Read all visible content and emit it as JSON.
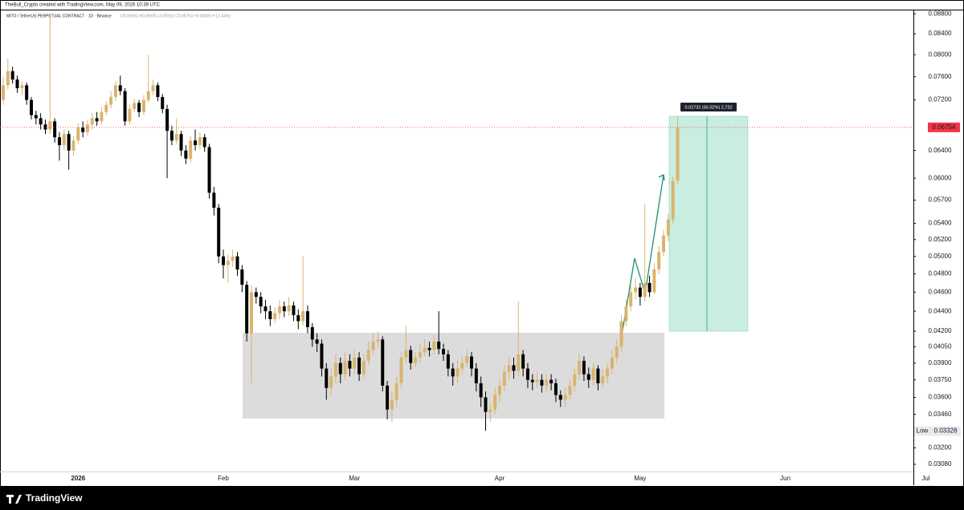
{
  "header": {
    "credit": "TheBull_Crypto created with TradingView.com, May 09, 2026 10:39 UTC"
  },
  "footer": {
    "brand": "TradingView"
  },
  "chart_data": {
    "type": "candlestick",
    "symbol": "MITO / TetherUS PERPETUAL CONTRACT · 1D · Binance",
    "ohlc_legend": "O0.05962 H0.06935 L0.05911 C0.06754 +0.00800 (+13.44%)",
    "measure_label": "0.02732 (65.02%) 2,732",
    "last_price": {
      "value": 0.06754,
      "label": "0.06754"
    },
    "low_marker": {
      "text": "Low",
      "value": 0.03328,
      "label": "0.03328"
    },
    "y_scale": "log",
    "grid": false,
    "up_color": "#d9b46c",
    "down_color": "#000000",
    "last_price_color": "#f23645",
    "ylim": [
      0.02934,
      0.0887
    ],
    "yticks": [
      {
        "value": 0.0308,
        "label": "0.03080"
      },
      {
        "value": 0.032,
        "label": "0.03200"
      },
      {
        "value": 0.0346,
        "label": "0.03460"
      },
      {
        "value": 0.036,
        "label": "0.03600"
      },
      {
        "value": 0.0375,
        "label": "0.03750"
      },
      {
        "value": 0.039,
        "label": "0.03900"
      },
      {
        "value": 0.0405,
        "label": "0.04050"
      },
      {
        "value": 0.042,
        "label": "0.04200"
      },
      {
        "value": 0.044,
        "label": "0.04400"
      },
      {
        "value": 0.046,
        "label": "0.04600"
      },
      {
        "value": 0.048,
        "label": "0.04800"
      },
      {
        "value": 0.05,
        "label": "0.05000"
      },
      {
        "value": 0.052,
        "label": "0.05200"
      },
      {
        "value": 0.054,
        "label": "0.05400"
      },
      {
        "value": 0.057,
        "label": "0.05700"
      },
      {
        "value": 0.06,
        "label": "0.06000"
      },
      {
        "value": 0.064,
        "label": "0.06400"
      },
      {
        "value": 0.072,
        "label": "0.07200"
      },
      {
        "value": 0.076,
        "label": "0.07600"
      },
      {
        "value": 0.08,
        "label": "0.08000"
      },
      {
        "value": 0.084,
        "label": "0.08400"
      },
      {
        "value": 0.088,
        "label": "0.08800"
      }
    ],
    "categories": [
      null,
      null,
      null,
      null,
      null,
      null,
      null,
      null,
      null,
      null,
      null,
      null,
      null,
      null,
      null,
      null,
      "2026",
      null,
      null,
      null,
      null,
      null,
      null,
      null,
      null,
      null,
      null,
      null,
      null,
      null,
      null,
      null,
      null,
      null,
      null,
      null,
      null,
      null,
      null,
      null,
      null,
      null,
      null,
      null,
      null,
      null,
      null,
      "Feb",
      null,
      null,
      null,
      null,
      null,
      null,
      null,
      null,
      null,
      null,
      null,
      null,
      null,
      null,
      null,
      null,
      null,
      null,
      null,
      null,
      null,
      null,
      null,
      null,
      null,
      null,
      null,
      "Mar",
      null,
      null,
      null,
      null,
      null,
      null,
      null,
      null,
      null,
      null,
      null,
      null,
      null,
      null,
      null,
      null,
      null,
      null,
      null,
      null,
      null,
      null,
      null,
      null,
      null,
      null,
      null,
      null,
      null,
      null,
      "Apr",
      null,
      null,
      null,
      null,
      null,
      null,
      null,
      null,
      null,
      null,
      null,
      null,
      null,
      null,
      null,
      null,
      null,
      null,
      null,
      null,
      null,
      null,
      null,
      null,
      null,
      null,
      null,
      null,
      null,
      "May",
      null,
      null,
      null,
      null,
      null,
      null,
      null,
      null,
      null,
      null,
      null,
      null,
      null,
      null,
      null,
      null,
      null,
      null,
      null,
      null,
      null,
      null,
      null,
      null,
      null,
      null,
      null,
      null,
      null,
      null,
      "Jun",
      null,
      null,
      null,
      null,
      null,
      null,
      null,
      null,
      null,
      null,
      null,
      null,
      null,
      null,
      null,
      null,
      null,
      null,
      null,
      null,
      null,
      null,
      null,
      null,
      null,
      null,
      null,
      null,
      null,
      "Jul"
    ],
    "open": [
      0.072,
      0.0745,
      0.077,
      0.0755,
      0.074,
      0.0745,
      0.072,
      0.0695,
      0.069,
      0.068,
      0.0672,
      0.0685,
      0.066,
      0.0648,
      0.0665,
      0.064,
      0.0655,
      0.0675,
      0.0668,
      0.068,
      0.069,
      0.0685,
      0.07,
      0.0712,
      0.0725,
      0.0745,
      0.0735,
      0.0685,
      0.0705,
      0.0715,
      0.07,
      0.072,
      0.0735,
      0.0745,
      0.0725,
      0.0705,
      0.067,
      0.0655,
      0.0665,
      0.064,
      0.0628,
      0.0655,
      0.0648,
      0.066,
      0.0645,
      0.058,
      0.056,
      0.05,
      0.049,
      0.0495,
      0.05,
      0.0485,
      0.0468,
      0.0418,
      0.046,
      0.0455,
      0.0445,
      0.044,
      0.0432,
      0.0438,
      0.0445,
      0.044,
      0.0446,
      0.0436,
      0.043,
      0.044,
      0.0424,
      0.0412,
      0.0408,
      0.0385,
      0.0368,
      0.0378,
      0.039,
      0.038,
      0.0392,
      0.0385,
      0.0395,
      0.038,
      0.0392,
      0.0402,
      0.041,
      0.0412,
      0.037,
      0.035,
      0.0358,
      0.0372,
      0.0395,
      0.0402,
      0.039,
      0.0395,
      0.04,
      0.0404,
      0.0402,
      0.041,
      0.0403,
      0.0398,
      0.0385,
      0.0378,
      0.0385,
      0.039,
      0.0396,
      0.0385,
      0.0372,
      0.036,
      0.0348,
      0.035,
      0.0362,
      0.037,
      0.0382,
      0.0388,
      0.0383,
      0.0398,
      0.0385,
      0.0375,
      0.0373,
      0.0375,
      0.037,
      0.0375,
      0.0372,
      0.0362,
      0.0358,
      0.0362,
      0.037,
      0.038,
      0.0392,
      0.038,
      0.0375,
      0.0385,
      0.0372,
      0.0378,
      0.0385,
      0.0395,
      0.0405,
      0.043,
      0.0445,
      0.046,
      0.0465,
      0.0455,
      0.047,
      0.046,
      0.0485,
      0.0505,
      0.0525,
      0.0545,
      0.05962,
      null,
      null,
      null,
      null,
      null,
      null,
      null,
      null,
      null,
      null,
      null,
      null,
      null,
      null,
      null,
      null,
      null,
      null,
      null,
      null,
      null,
      null,
      null,
      null,
      null,
      null,
      null,
      null,
      null,
      null,
      null,
      null,
      null,
      null,
      null,
      null,
      null,
      null,
      null,
      null,
      null,
      null,
      null,
      null,
      null,
      null,
      null,
      null,
      null,
      null,
      null,
      null,
      null
    ],
    "close": [
      0.0745,
      0.077,
      0.0755,
      0.074,
      0.0745,
      0.072,
      0.0695,
      0.069,
      0.068,
      0.0672,
      0.0685,
      0.066,
      0.0648,
      0.0665,
      0.064,
      0.0655,
      0.0675,
      0.0668,
      0.068,
      0.069,
      0.0685,
      0.07,
      0.0712,
      0.0725,
      0.0745,
      0.0735,
      0.0685,
      0.0705,
      0.0715,
      0.07,
      0.072,
      0.0735,
      0.0745,
      0.0725,
      0.0705,
      0.067,
      0.0655,
      0.0665,
      0.064,
      0.0628,
      0.0655,
      0.0648,
      0.066,
      0.0645,
      0.058,
      0.056,
      0.05,
      0.049,
      0.0495,
      0.05,
      0.0485,
      0.0468,
      0.0418,
      0.046,
      0.0455,
      0.0445,
      0.044,
      0.0432,
      0.0438,
      0.0445,
      0.044,
      0.0446,
      0.0436,
      0.043,
      0.044,
      0.0424,
      0.0412,
      0.0408,
      0.0385,
      0.0368,
      0.0378,
      0.039,
      0.038,
      0.0392,
      0.0385,
      0.0395,
      0.038,
      0.0392,
      0.0402,
      0.041,
      0.0412,
      0.037,
      0.035,
      0.0358,
      0.0372,
      0.0395,
      0.0402,
      0.039,
      0.0395,
      0.04,
      0.0404,
      0.0402,
      0.041,
      0.0403,
      0.0398,
      0.0385,
      0.0378,
      0.0385,
      0.039,
      0.0396,
      0.0385,
      0.0372,
      0.036,
      0.0348,
      0.035,
      0.0362,
      0.037,
      0.0382,
      0.0388,
      0.0383,
      0.0398,
      0.0385,
      0.0375,
      0.0373,
      0.0375,
      0.037,
      0.0375,
      0.0372,
      0.0362,
      0.0358,
      0.0362,
      0.037,
      0.038,
      0.0392,
      0.038,
      0.0375,
      0.0385,
      0.0372,
      0.0378,
      0.0385,
      0.0395,
      0.0405,
      0.043,
      0.0445,
      0.046,
      0.0465,
      0.0455,
      0.047,
      0.046,
      0.0485,
      0.0505,
      0.0525,
      0.0545,
      0.0596,
      0.06754,
      null,
      null,
      null,
      null,
      null,
      null,
      null,
      null,
      null,
      null,
      null,
      null,
      null,
      null,
      null,
      null,
      null,
      null,
      null,
      null,
      null,
      null,
      null,
      null,
      null,
      null,
      null,
      null,
      null,
      null,
      null,
      null,
      null,
      null,
      null,
      null,
      null,
      null,
      null,
      null,
      null,
      null,
      null,
      null,
      null,
      null,
      null,
      null,
      null,
      null,
      null,
      null,
      null
    ],
    "high": [
      0.076,
      0.0793,
      0.0778,
      0.0762,
      0.0752,
      0.075,
      0.0725,
      0.0702,
      0.0698,
      0.0688,
      0.088,
      0.069,
      0.0668,
      0.0672,
      0.067,
      0.0662,
      0.0682,
      0.0685,
      0.0688,
      0.0698,
      0.07,
      0.0708,
      0.0718,
      0.0735,
      0.0752,
      0.0762,
      0.074,
      0.0712,
      0.0722,
      0.072,
      0.0728,
      0.08,
      0.0755,
      0.075,
      0.073,
      0.0712,
      0.0678,
      0.069,
      0.067,
      0.0648,
      0.0662,
      0.0672,
      0.0668,
      0.0665,
      0.065,
      0.0588,
      0.0565,
      0.0508,
      0.0502,
      0.0508,
      0.0505,
      0.049,
      0.0472,
      0.0468,
      0.0465,
      0.046,
      0.0452,
      0.0446,
      0.0444,
      0.0452,
      0.045,
      0.0455,
      0.045,
      0.0442,
      0.05,
      0.0446,
      0.0428,
      0.0418,
      0.0412,
      0.039,
      0.0385,
      0.0398,
      0.0395,
      0.04,
      0.0398,
      0.0402,
      0.04,
      0.0398,
      0.041,
      0.0418,
      0.042,
      0.0415,
      0.0374,
      0.0365,
      0.0378,
      0.04,
      0.0425,
      0.0406,
      0.04,
      0.0408,
      0.0412,
      0.041,
      0.0416,
      0.044,
      0.0408,
      0.0402,
      0.039,
      0.0392,
      0.0396,
      0.0402,
      0.04,
      0.039,
      0.0378,
      0.0365,
      0.0356,
      0.0368,
      0.0376,
      0.0388,
      0.0395,
      0.0395,
      0.045,
      0.0402,
      0.039,
      0.038,
      0.0382,
      0.038,
      0.038,
      0.038,
      0.0376,
      0.0366,
      0.0368,
      0.0376,
      0.0386,
      0.0398,
      0.0396,
      0.0386,
      0.039,
      0.0388,
      0.0384,
      0.039,
      0.0402,
      0.0412,
      0.0436,
      0.0452,
      0.0468,
      0.0475,
      0.047,
      0.0565,
      0.0478,
      0.0492,
      0.0512,
      0.0532,
      0.0552,
      0.0602,
      0.06935,
      null,
      null,
      null,
      null,
      null,
      null,
      null,
      null,
      null,
      null,
      null,
      null,
      null,
      null,
      null,
      null,
      null,
      null,
      null,
      null,
      null,
      null,
      null,
      null,
      null,
      null,
      null,
      null,
      null,
      null,
      null,
      null,
      null,
      null,
      null,
      null,
      null,
      null,
      null,
      null,
      null,
      null,
      null,
      null,
      null,
      null,
      null,
      null,
      null,
      null,
      null,
      null,
      null
    ],
    "low": [
      0.0712,
      0.0738,
      0.0748,
      0.0732,
      0.0728,
      0.0712,
      0.0688,
      0.068,
      0.0672,
      0.0665,
      0.0665,
      0.0652,
      0.0625,
      0.064,
      0.0612,
      0.0632,
      0.065,
      0.066,
      0.0662,
      0.0672,
      0.0678,
      0.068,
      0.0695,
      0.0706,
      0.0718,
      0.0728,
      0.0678,
      0.068,
      0.07,
      0.0692,
      0.0695,
      0.0715,
      0.0728,
      0.0718,
      0.0698,
      0.06,
      0.0648,
      0.065,
      0.0632,
      0.062,
      0.0622,
      0.064,
      0.0642,
      0.0638,
      0.0572,
      0.055,
      0.0492,
      0.0475,
      0.047,
      0.0488,
      0.0478,
      0.046,
      0.041,
      0.0372,
      0.0448,
      0.0438,
      0.0432,
      0.0425,
      0.0428,
      0.0432,
      0.0434,
      0.0435,
      0.043,
      0.0422,
      0.0426,
      0.0418,
      0.0405,
      0.04,
      0.0378,
      0.0358,
      0.0362,
      0.0372,
      0.0372,
      0.0375,
      0.0378,
      0.038,
      0.0374,
      0.0376,
      0.0388,
      0.0398,
      0.0405,
      0.0365,
      0.0342,
      0.034,
      0.0352,
      0.0368,
      0.039,
      0.0384,
      0.0386,
      0.039,
      0.0396,
      0.0396,
      0.0398,
      0.0398,
      0.0392,
      0.0378,
      0.037,
      0.0372,
      0.038,
      0.0386,
      0.0378,
      0.0365,
      0.0352,
      0.0333,
      0.034,
      0.0346,
      0.0356,
      0.0365,
      0.0375,
      0.0376,
      0.0378,
      0.0378,
      0.0368,
      0.0366,
      0.0368,
      0.0364,
      0.0365,
      0.0366,
      0.0356,
      0.0352,
      0.0352,
      0.0358,
      0.0365,
      0.0375,
      0.0374,
      0.0368,
      0.037,
      0.0366,
      0.0368,
      0.0372,
      0.038,
      0.039,
      0.04,
      0.0425,
      0.044,
      0.0452,
      0.0446,
      0.045,
      0.0455,
      0.0458,
      0.048,
      0.05,
      0.0518,
      0.054,
      0.05911,
      null,
      null,
      null,
      null,
      null,
      null,
      null,
      null,
      null,
      null,
      null,
      null,
      null,
      null,
      null,
      null,
      null,
      null,
      null,
      null,
      null,
      null,
      null,
      null,
      null,
      null,
      null,
      null,
      null,
      null,
      null,
      null,
      null,
      null,
      null,
      null,
      null,
      null,
      null,
      null,
      null,
      null,
      null,
      null,
      null,
      null,
      null,
      null,
      null,
      null,
      null,
      null,
      null
    ]
  }
}
